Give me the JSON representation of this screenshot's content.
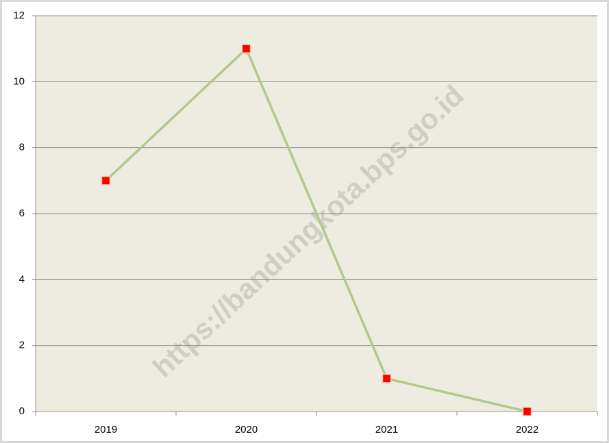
{
  "chart_data": {
    "type": "line",
    "categories": [
      "2019",
      "2020",
      "2021",
      "2022"
    ],
    "series": [
      {
        "name": null,
        "color": "#b1c98a",
        "marker_color": "#ff0000",
        "values": [
          7,
          11,
          1,
          0
        ]
      }
    ],
    "ylim": [
      0,
      12
    ],
    "yticks": [
      0,
      2,
      4,
      6,
      8,
      10,
      12
    ],
    "grid": true,
    "watermark": "https://bandungkota.bps.go.id"
  }
}
